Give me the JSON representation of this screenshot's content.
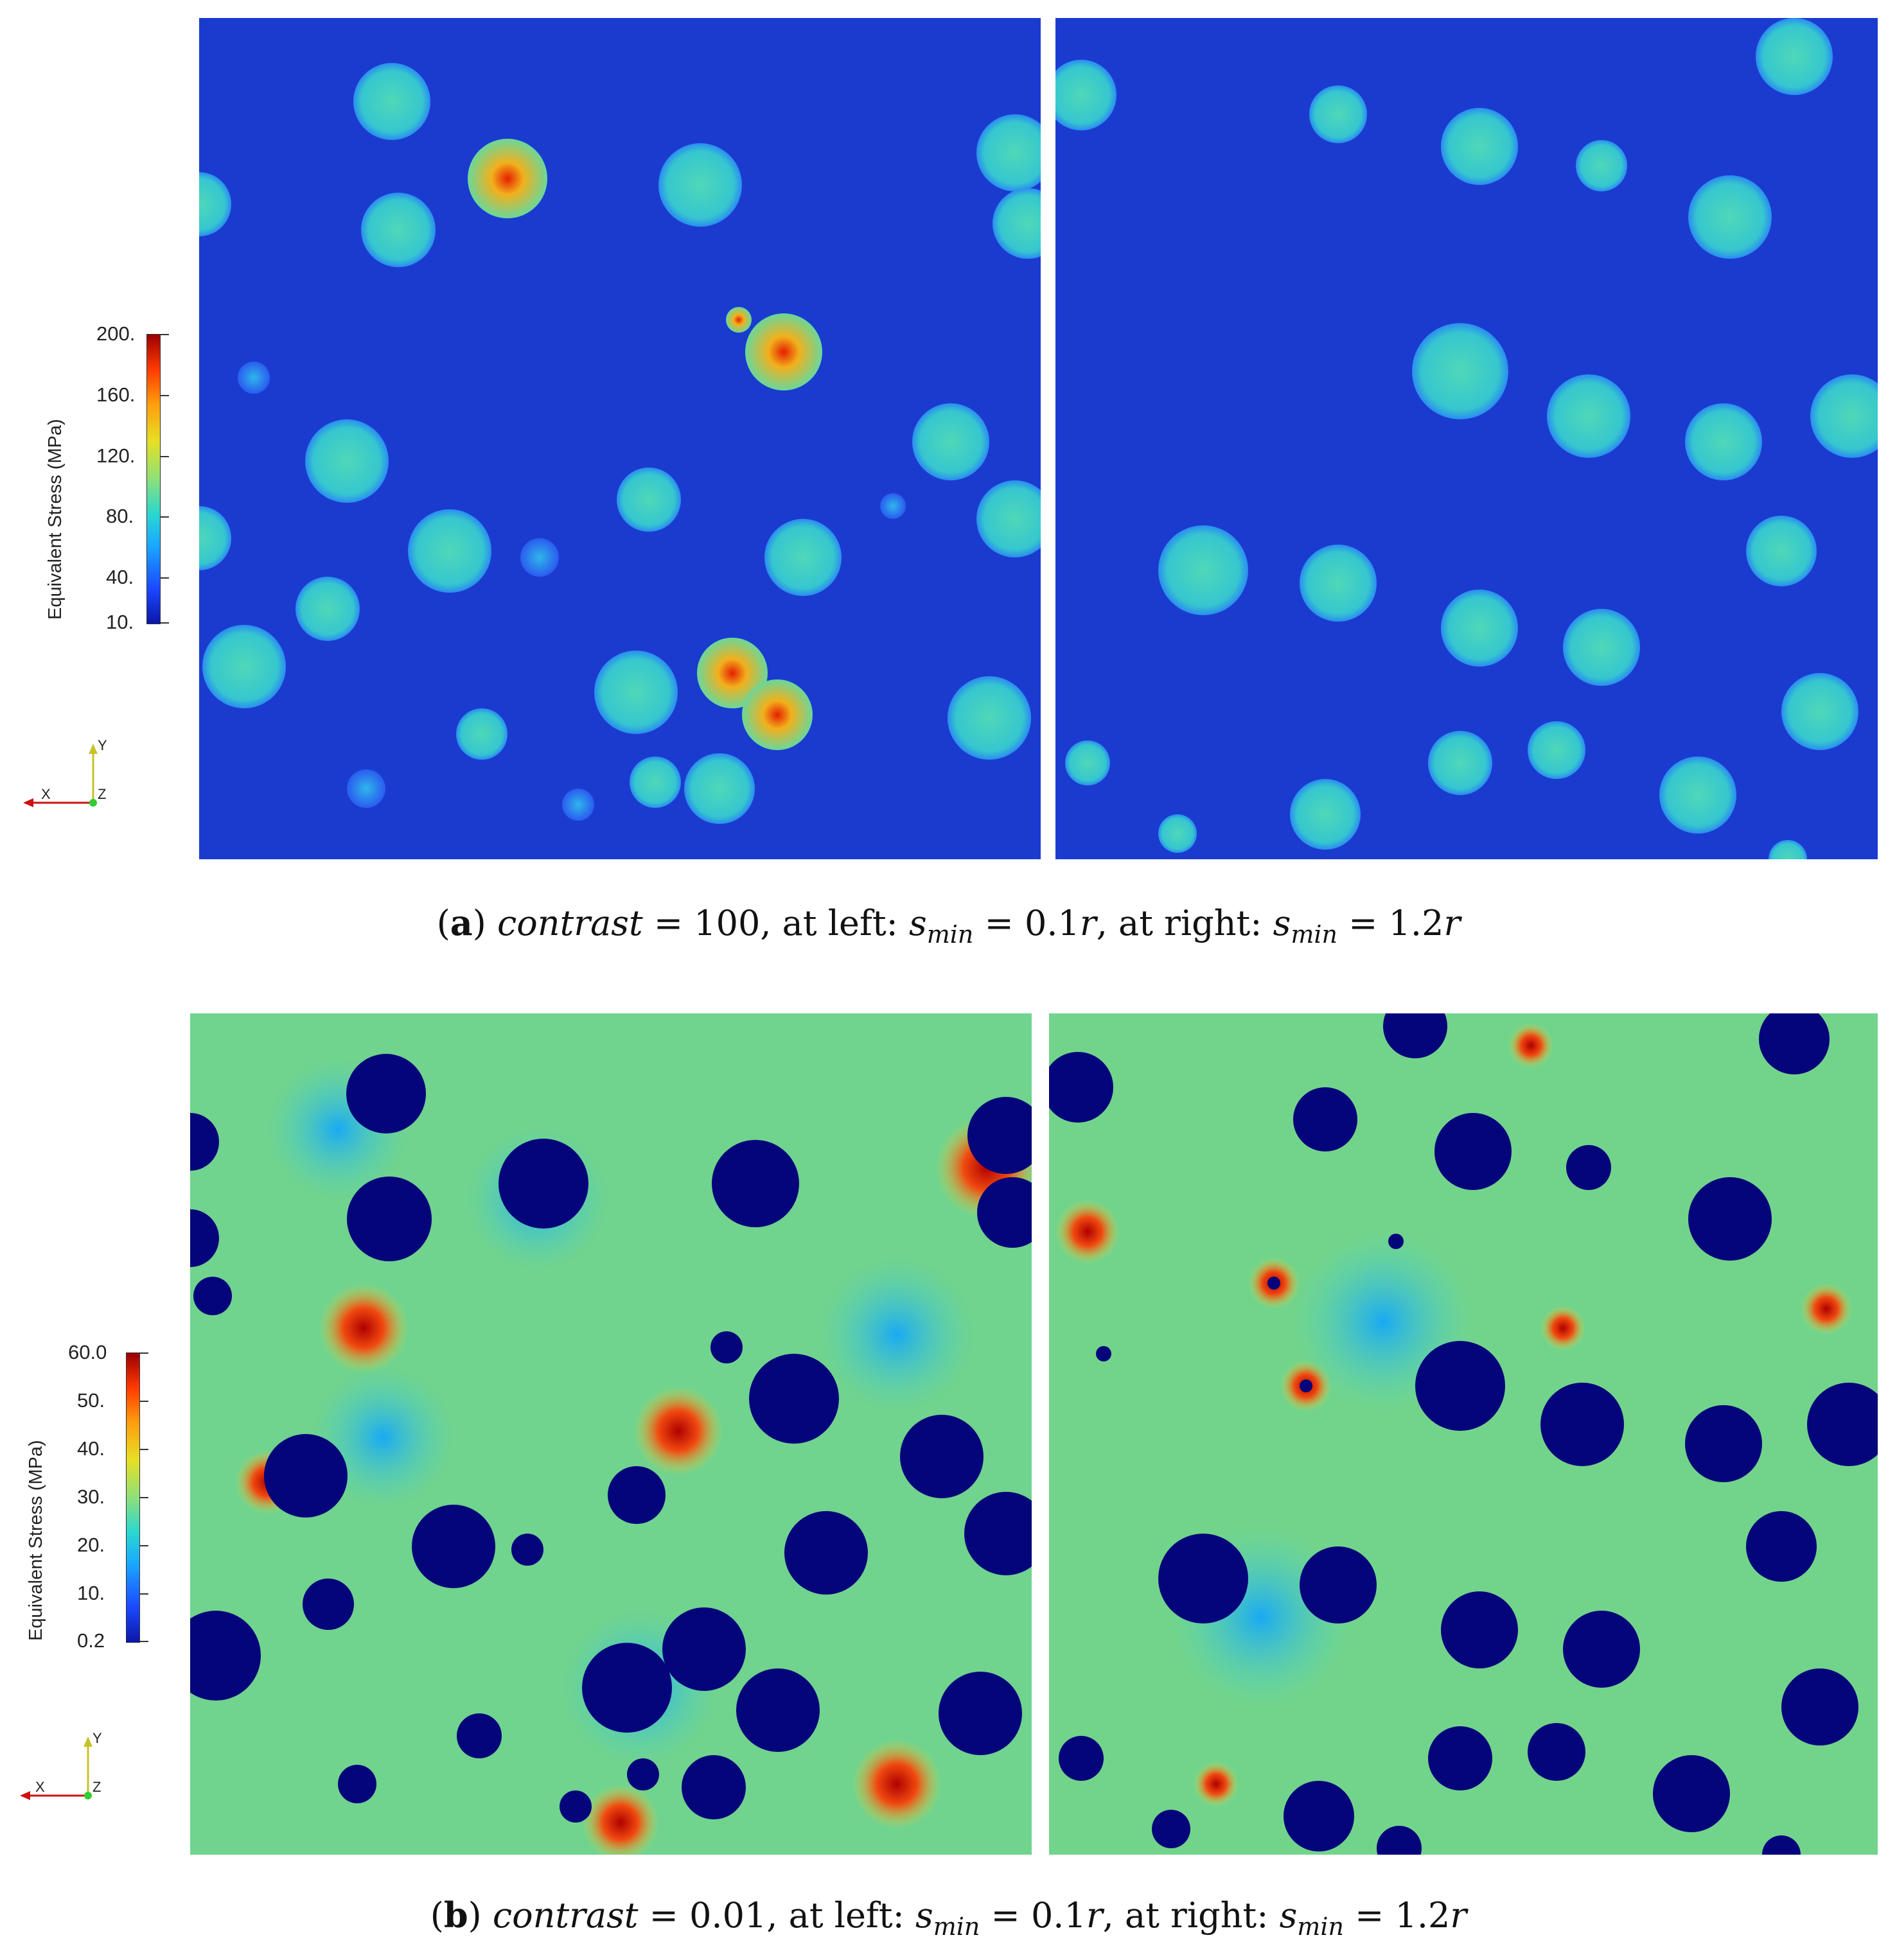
{
  "panels": [
    {
      "id": "a",
      "caption": {
        "open": "(",
        "label": "a",
        "close": ")",
        "var": "contrast",
        "rest_a": " = 100, at left: ",
        "s": "s",
        "sub": "min",
        "eq1": " = 0.1",
        "r1": "r",
        "mid": ", at right: ",
        "eq2": " = 1.2",
        "r2": "r"
      },
      "colorbar": {
        "title": "Equivalent Stress (MPa)",
        "ticks": [
          "200.",
          "160.",
          "120.",
          "80.",
          "40.",
          "10."
        ],
        "range": [
          10,
          200
        ]
      },
      "axes": {
        "x": "X",
        "y": "Y",
        "z": "Z"
      },
      "background_color": "#1f3fd6",
      "inclusion_color": "#3fd0c8"
    },
    {
      "id": "b",
      "caption": {
        "open": "(",
        "label": "b",
        "close": ")",
        "var": "contrast",
        "rest_a": " = 0.01, at left: ",
        "s": "s",
        "sub": "min",
        "eq1": " = 0.1",
        "r1": "r",
        "mid": ", at right: ",
        "eq2": " = 1.2",
        "r2": "r"
      },
      "colorbar": {
        "title": "Equivalent Stress (MPa)",
        "ticks": [
          "60.0",
          "50.",
          "40.",
          "30.",
          "20.",
          "10.",
          "0.2"
        ],
        "range": [
          0.2,
          60
        ]
      },
      "axes": {
        "x": "X",
        "y": "Y",
        "z": "Z"
      },
      "background_color": "#7fd67a",
      "inclusion_color": "#04057a"
    }
  ]
}
